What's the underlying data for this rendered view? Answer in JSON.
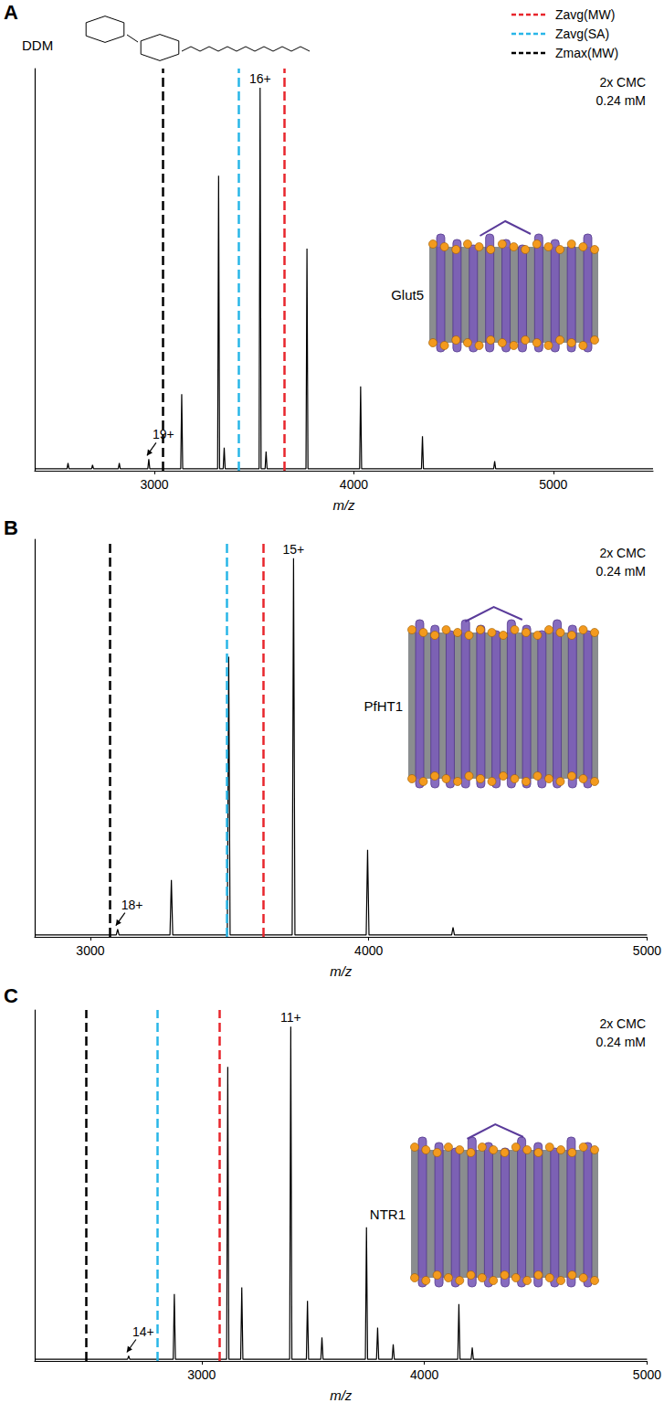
{
  "chart_data": [
    {
      "type": "line",
      "panel": "A",
      "molecule": "DDM",
      "protein": "Glut5",
      "annotations": [
        "2x CMC",
        "0.24 mM"
      ],
      "xlabel": "m/z",
      "xlim": [
        2400,
        5500
      ],
      "xticks": [
        3000,
        4000,
        5000
      ],
      "ylim": [
        0,
        105
      ],
      "tick_labels": "x",
      "grid": false,
      "color": "#000000",
      "x": [
        2400,
        2562,
        2567,
        2572,
        2685,
        2690,
        2695,
        2819,
        2824,
        2829,
        2967,
        2972,
        2977,
        3132,
        3137,
        3142,
        3317,
        3322,
        3327,
        3345,
        3350,
        3355,
        3525,
        3530,
        3535,
        3555,
        3560,
        3565,
        3760,
        3765,
        3770,
        4029,
        4034,
        4039,
        4339,
        4344,
        4349,
        4701,
        4706,
        4711,
        5500
      ],
      "values": [
        0.5,
        0.5,
        2,
        0.5,
        0.5,
        1.5,
        0.5,
        0.5,
        2,
        0.5,
        0.5,
        3,
        0.5,
        0.5,
        20,
        0.5,
        0.5,
        77,
        0.5,
        0.5,
        6,
        0.5,
        0.5,
        100,
        0.5,
        0.5,
        5,
        0.5,
        0.5,
        58,
        0.5,
        0.5,
        22,
        0.5,
        0.5,
        9,
        0.5,
        0.5,
        2.5,
        0.5,
        0.5
      ],
      "peak_labels": [
        {
          "text": "16+",
          "x": 3530,
          "y": 100
        }
      ],
      "arrow_labels": [
        {
          "text": "19+",
          "x": 2972,
          "y": 3
        }
      ],
      "reference_lines": [
        {
          "name": "Zavg(MW)",
          "x": 3650,
          "color": "#e8262c",
          "line_style": "dashed"
        },
        {
          "name": "Zavg(SA)",
          "x": 3420,
          "color": "#29b6e8",
          "line_style": "dashed"
        },
        {
          "name": "Zmax(MW)",
          "x": 3040,
          "color": "#000000",
          "line_style": "dashed"
        }
      ]
    },
    {
      "type": "line",
      "panel": "B",
      "protein": "PfHT1",
      "annotations": [
        "2x CMC",
        "0.24 mM"
      ],
      "xlabel": "m/z",
      "xlim": [
        2800,
        5000
      ],
      "xticks": [
        3000,
        4000,
        5000
      ],
      "ylim": [
        0,
        105
      ],
      "tick_labels": "x",
      "grid": false,
      "color": "#000000",
      "x": [
        2800,
        3093,
        3098,
        3103,
        3286,
        3291,
        3296,
        3492,
        3497,
        3502,
        3725,
        3730,
        3735,
        3991,
        3996,
        4001,
        4298,
        4303,
        4308,
        5000
      ],
      "values": [
        0.5,
        0.5,
        2,
        0.5,
        0.5,
        15,
        0.5,
        0.5,
        74,
        0.5,
        0.5,
        100,
        0.5,
        0.5,
        23,
        0.5,
        0.5,
        2.5,
        0.5,
        0.5
      ],
      "peak_labels": [
        {
          "text": "15+",
          "x": 3730,
          "y": 100
        }
      ],
      "arrow_labels": [
        {
          "text": "18+",
          "x": 3098,
          "y": 2
        }
      ],
      "reference_lines": [
        {
          "name": "Zavg(MW)",
          "x": 3620,
          "color": "#e8262c",
          "line_style": "dashed"
        },
        {
          "name": "Zavg(SA)",
          "x": 3490,
          "color": "#29b6e8",
          "line_style": "dashed"
        },
        {
          "name": "Zmax(MW)",
          "x": 3070,
          "color": "#000000",
          "line_style": "dashed"
        }
      ]
    },
    {
      "type": "line",
      "panel": "C",
      "protein": "NTR1",
      "annotations": [
        "2x CMC",
        "0.24 mM"
      ],
      "xlabel": "m/z",
      "xlim": [
        2250,
        5000
      ],
      "xticks": [
        3000,
        4000,
        5000
      ],
      "ylim": [
        0,
        105
      ],
      "tick_labels": "x",
      "grid": false,
      "color": "#000000",
      "x": [
        2250,
        2667,
        2672,
        2677,
        2872,
        2877,
        2882,
        3112,
        3117,
        3122,
        3175,
        3180,
        3185,
        3395,
        3400,
        3405,
        3470,
        3475,
        3480,
        3535,
        3540,
        3545,
        3735,
        3740,
        3745,
        3785,
        3790,
        3795,
        3855,
        3860,
        3865,
        4150,
        4155,
        4160,
        4210,
        4215,
        4220,
        5000
      ],
      "values": [
        0.5,
        0.5,
        1.5,
        0.5,
        0.5,
        20,
        0.5,
        0.5,
        88,
        0.5,
        0.5,
        22,
        0.5,
        0.5,
        100,
        0.5,
        0.5,
        18,
        0.5,
        0.5,
        7,
        0.5,
        0.5,
        40,
        0.5,
        0.5,
        10,
        0.5,
        0.5,
        5,
        0.5,
        0.5,
        17,
        0.5,
        0.5,
        4,
        0.5,
        0.5
      ],
      "peak_labels": [
        {
          "text": "11+",
          "x": 3400,
          "y": 100
        }
      ],
      "arrow_labels": [
        {
          "text": "14+",
          "x": 2672,
          "y": 1.5
        }
      ],
      "reference_lines": [
        {
          "name": "Zavg(MW)",
          "x": 3080,
          "color": "#e8262c",
          "line_style": "dashed"
        },
        {
          "name": "Zavg(SA)",
          "x": 2800,
          "color": "#29b6e8",
          "line_style": "dashed"
        },
        {
          "name": "Zmax(MW)",
          "x": 2480,
          "color": "#000000",
          "line_style": "dashed"
        }
      ]
    }
  ]
}
